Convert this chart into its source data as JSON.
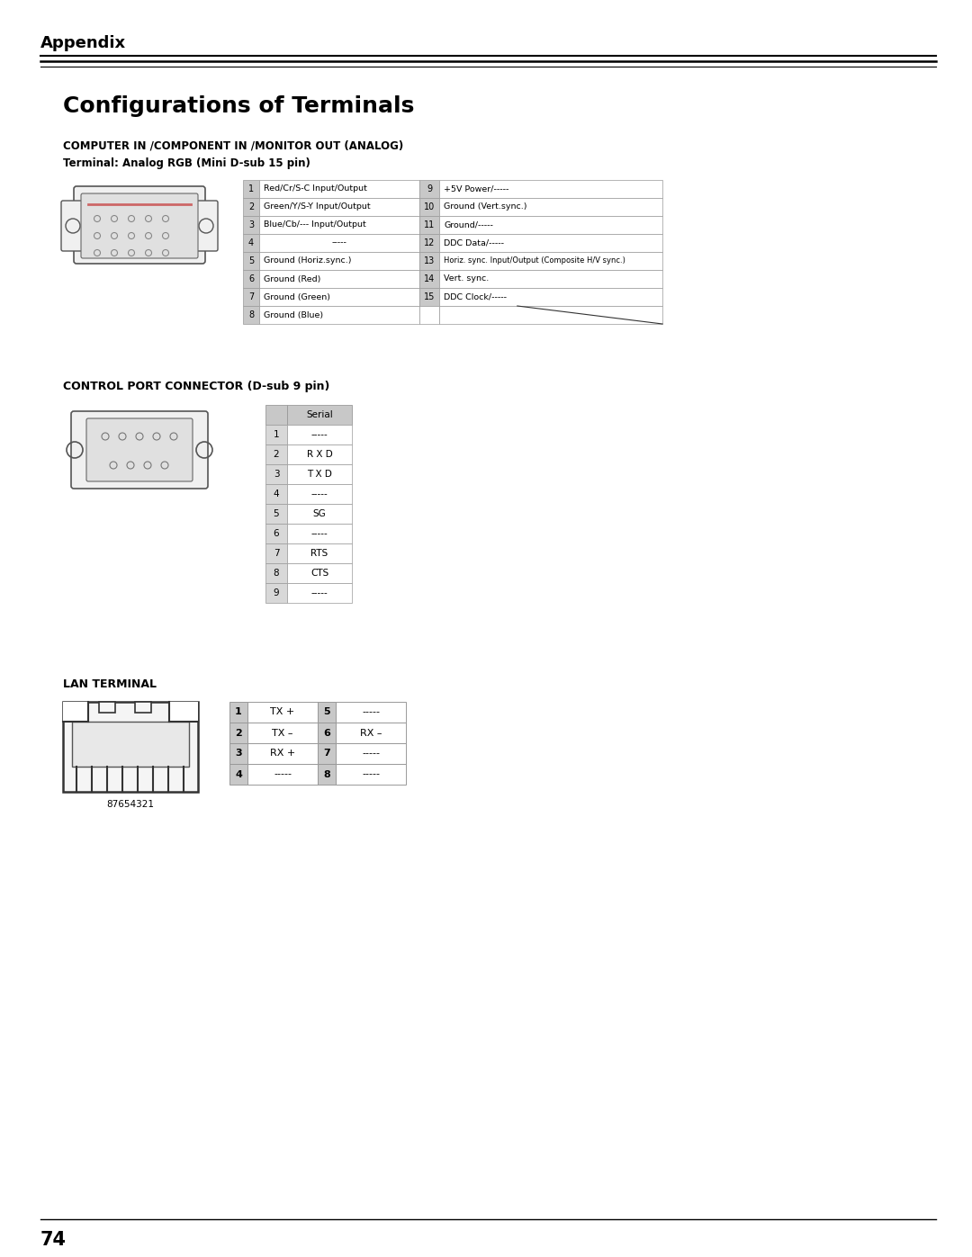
{
  "page_bg": "#ffffff",
  "header_text": "Appendix",
  "title_text": "Configurations of Terminals",
  "section1_title": "COMPUTER IN /COMPONENT IN /MONITOR OUT (ANALOG)",
  "section1_subtitle": "Terminal: Analog RGB (Mini D-sub 15 pin)",
  "table1_left": [
    [
      "1",
      "Red/Cr/S-C Input/Output"
    ],
    [
      "2",
      "Green/Y/S-Y Input/Output"
    ],
    [
      "3",
      "Blue/Cb/--- Input/Output"
    ],
    [
      "4",
      "-----"
    ],
    [
      "5",
      "Ground (Horiz.sync.)"
    ],
    [
      "6",
      "Ground (Red)"
    ],
    [
      "7",
      "Ground (Green)"
    ],
    [
      "8",
      "Ground (Blue)"
    ]
  ],
  "table1_right": [
    [
      "9",
      "+5V Power/-----"
    ],
    [
      "10",
      "Ground (Vert.sync.)"
    ],
    [
      "11",
      "Ground/-----"
    ],
    [
      "12",
      "DDC Data/-----"
    ],
    [
      "13",
      "Horiz. sync. Input/Output (Composite H/V sync.)"
    ],
    [
      "14",
      "Vert. sync."
    ],
    [
      "15",
      "DDC Clock/-----"
    ],
    [
      "",
      ""
    ]
  ],
  "section2_title": "CONTROL PORT CONNECTOR (D-sub 9 pin)",
  "table2_header": "Serial",
  "table2_rows": [
    [
      "1",
      "-----"
    ],
    [
      "2",
      "R X D"
    ],
    [
      "3",
      "T X D"
    ],
    [
      "4",
      "-----"
    ],
    [
      "5",
      "SG"
    ],
    [
      "6",
      "-----"
    ],
    [
      "7",
      "RTS"
    ],
    [
      "8",
      "CTS"
    ],
    [
      "9",
      "-----"
    ]
  ],
  "section3_title": "LAN TERMINAL",
  "table3_rows": [
    [
      "1",
      "TX +",
      "5",
      "-----"
    ],
    [
      "2",
      "TX –",
      "6",
      "RX –"
    ],
    [
      "3",
      "RX +",
      "7",
      "-----"
    ],
    [
      "4",
      "-----",
      "8",
      "-----"
    ]
  ],
  "lan_label": "87654321",
  "footer_page": "74"
}
